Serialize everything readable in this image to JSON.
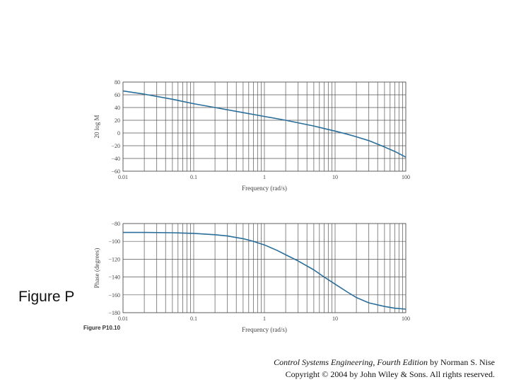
{
  "slide": {
    "title": "Figure P",
    "figure_caption": "Figure P10.10",
    "credit_book": "Control Systems Engineering, Fourth Edition",
    "credit_author": " by Norman S. Nise",
    "credit_copyright": "Copyright © 2004 by John Wiley & Sons. All rights reserved."
  },
  "colors": {
    "curve": "#2a6e9a",
    "grid": "#555555",
    "background": "#ffffff"
  },
  "chart_data": [
    {
      "type": "line",
      "xlabel": "Frequency (rad/s)",
      "ylabel": "20 log M",
      "xscale": "log",
      "xlim": [
        0.01,
        100
      ],
      "ylim": [
        -60,
        80
      ],
      "xticks": [
        0.01,
        0.1,
        1,
        10,
        100
      ],
      "xtick_labels": [
        "0.01",
        "0.1",
        "1",
        "10",
        "100"
      ],
      "yticks": [
        80,
        60,
        40,
        20,
        0,
        -20,
        -40,
        -60
      ],
      "ytick_labels": [
        "80",
        "60",
        "40",
        "20",
        "0",
        "−20",
        "−40",
        "−60"
      ],
      "grid": true,
      "series": [
        {
          "x": [
            0.01,
            0.02,
            0.05,
            0.1,
            0.2,
            0.5,
            1,
            2,
            3,
            5,
            7,
            10,
            15,
            20,
            30,
            50,
            70,
            100
          ],
          "values": [
            66,
            61,
            53,
            46,
            40,
            32,
            26,
            20,
            16,
            11,
            7,
            3,
            -2,
            -6,
            -12,
            -22,
            -29,
            -38
          ]
        }
      ]
    },
    {
      "type": "line",
      "xlabel": "Frequency (rad/s)",
      "ylabel": "Phase (degrees)",
      "xscale": "log",
      "xlim": [
        0.01,
        100
      ],
      "ylim": [
        -180,
        -80
      ],
      "xticks": [
        0.01,
        0.1,
        1,
        10,
        100
      ],
      "xtick_labels": [
        "0.01",
        "0.1",
        "1",
        "10",
        "100"
      ],
      "yticks": [
        -80,
        -100,
        -120,
        -140,
        -160,
        -180
      ],
      "ytick_labels": [
        "−80",
        "−100",
        "−120",
        "−140",
        "−160",
        "−180"
      ],
      "grid": true,
      "series": [
        {
          "x": [
            0.01,
            0.02,
            0.05,
            0.1,
            0.2,
            0.3,
            0.5,
            0.7,
            1,
            1.5,
            2,
            3,
            5,
            7,
            10,
            15,
            20,
            30,
            50,
            70,
            100
          ],
          "values": [
            -90,
            -90,
            -90.3,
            -91,
            -92.5,
            -94,
            -97,
            -100,
            -104,
            -110,
            -115,
            -122,
            -132,
            -140,
            -148,
            -157,
            -163,
            -169,
            -173,
            -175,
            -176
          ]
        }
      ]
    }
  ]
}
